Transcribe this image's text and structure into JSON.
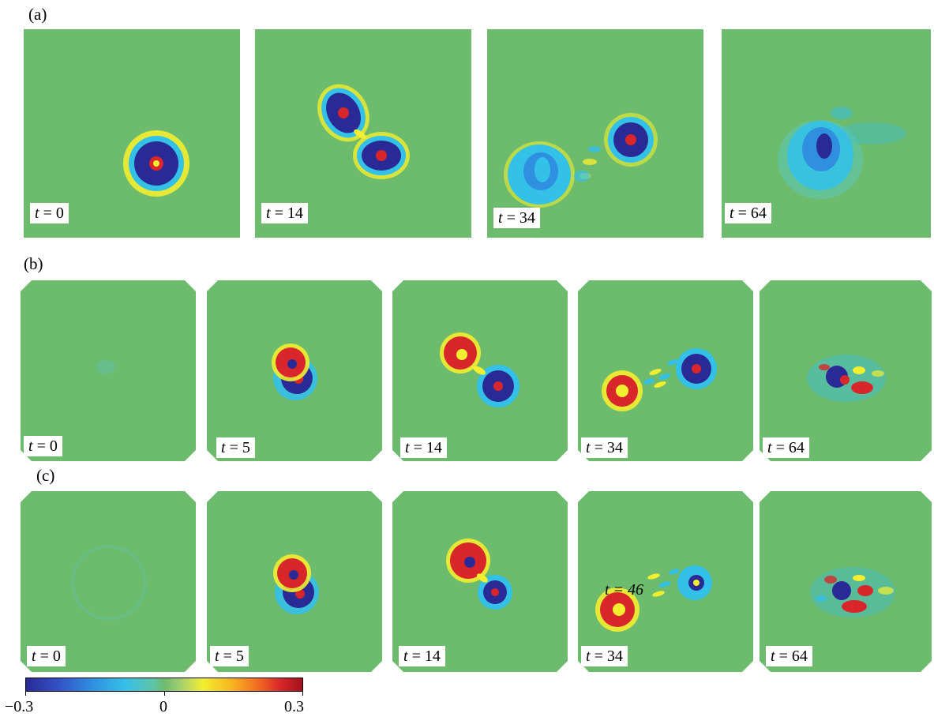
{
  "rows": [
    {
      "label": "(a)",
      "panels": [
        {
          "var": "t",
          "eq": "=",
          "val": "0"
        },
        {
          "var": "t",
          "eq": "=",
          "val": "14"
        },
        {
          "var": "t",
          "eq": "=",
          "val": "34"
        },
        {
          "var": "t",
          "eq": "=",
          "val": "64"
        }
      ]
    },
    {
      "label": "(b)",
      "panels": [
        {
          "var": "t",
          "eq": "=",
          "val": "0"
        },
        {
          "var": "t",
          "eq": "=",
          "val": "5"
        },
        {
          "var": "t",
          "eq": "=",
          "val": "14"
        },
        {
          "var": "t",
          "eq": "=",
          "val": "34"
        },
        {
          "var": "t",
          "eq": "=",
          "val": "64"
        }
      ]
    },
    {
      "label": "(c)",
      "panels": [
        {
          "var": "t",
          "eq": "=",
          "val": "0"
        },
        {
          "var": "t",
          "eq": "=",
          "val": "5"
        },
        {
          "var": "t",
          "eq": "=",
          "val": "14"
        },
        {
          "var": "t",
          "eq": "=",
          "val": "34"
        },
        {
          "var": "t",
          "eq": "=",
          "val": "64"
        }
      ]
    }
  ],
  "overlay_label": "t = 46",
  "colorbar": {
    "min_label": "−0.3",
    "mid_label": "0",
    "max_label": "0.3"
  },
  "colors": {
    "background_field": "#6dbb6d",
    "negative": "#2a2a96",
    "positive": "#d9262a"
  }
}
